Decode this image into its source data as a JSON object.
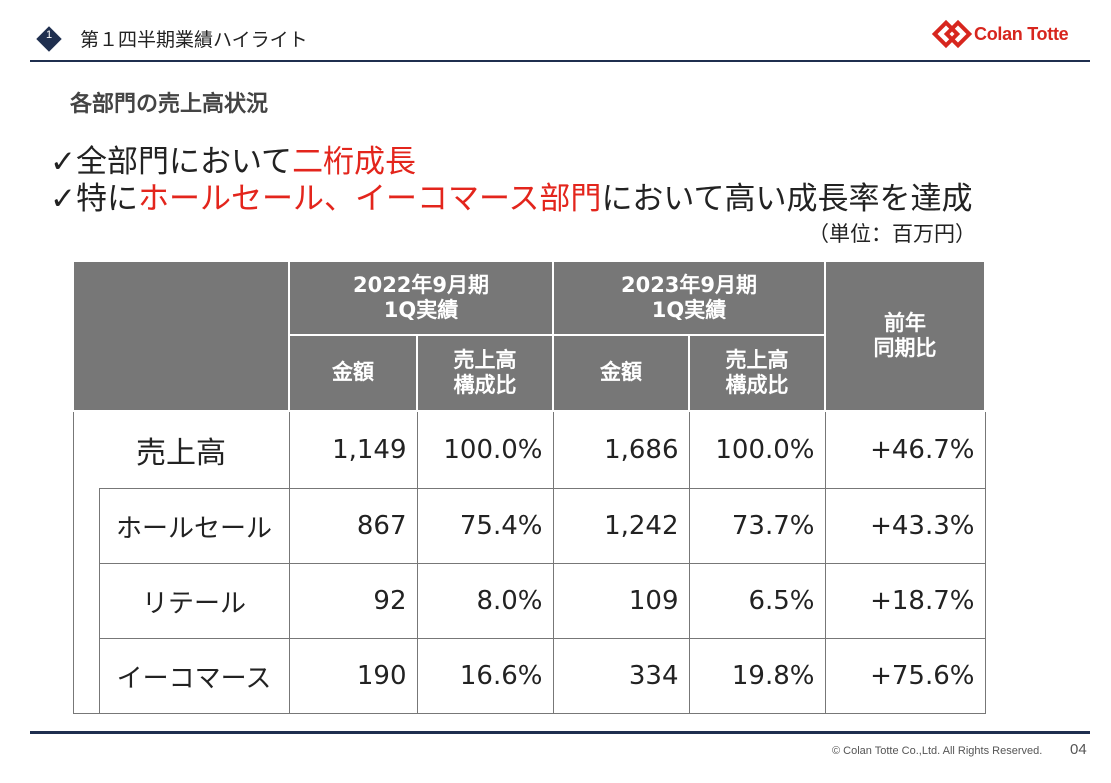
{
  "header": {
    "section_number": "1",
    "title": "第１四半期業績ハイライト",
    "logo_text": "Colan Totte",
    "brand_color": "#d7261e",
    "navy": "#1f2f4f"
  },
  "subtitle": "各部門の売上高状況",
  "bullets": [
    {
      "mark": "✓",
      "pre": "全部門において",
      "hl": "二桁成長",
      "post": ""
    },
    {
      "mark": "✓",
      "pre": "特に",
      "hl": "ホールセール、イーコマース部門",
      "post": "において高い成長率を達成"
    }
  ],
  "unit_note": "（単位：百万円）",
  "table": {
    "header": {
      "period_2022": [
        "2022年9月期",
        "1Q実績"
      ],
      "period_2023": [
        "2023年9月期",
        "1Q実績"
      ],
      "amount": "金額",
      "ratio": [
        "売上高",
        "構成比"
      ],
      "yoy": [
        "前年",
        "同期比"
      ]
    },
    "rows": [
      {
        "label": "売上高",
        "v2022": "1,149",
        "r2022": "100.0%",
        "v2023": "1,686",
        "r2023": "100.0%",
        "yoy": "+46.7%"
      },
      {
        "label": "ホールセール",
        "v2022": "867",
        "r2022": "75.4%",
        "v2023": "1,242",
        "r2023": "73.7%",
        "yoy": "+43.3%"
      },
      {
        "label": "リテール",
        "v2022": "92",
        "r2022": "8.0%",
        "v2023": "109",
        "r2023": "6.5%",
        "yoy": "+18.7%"
      },
      {
        "label": "イーコマース",
        "v2022": "190",
        "r2022": "16.6%",
        "v2023": "334",
        "r2023": "19.8%",
        "yoy": "+75.6%"
      }
    ]
  },
  "footer": {
    "copyright": "© Colan Totte Co.,Ltd. All Rights Reserved.",
    "page": "04"
  }
}
